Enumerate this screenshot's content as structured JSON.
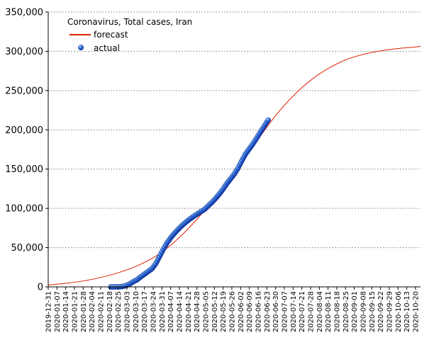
{
  "chart_data": {
    "type": "line",
    "title": "",
    "legend": {
      "title": "Coronavirus, Total cases, Iran",
      "placement": "top-left",
      "entries": [
        "forecast",
        "actual"
      ]
    },
    "xlabel": "",
    "ylabel": "",
    "ylim": [
      0,
      350000
    ],
    "xlim": [
      "2019-12-31",
      "2020-10-24"
    ],
    "grid": "horizontal dashed",
    "colors": {
      "forecast": "#e02000",
      "actual": "#1a55d8"
    },
    "x_ticks": [
      "2019-12-31",
      "2020-01-07",
      "2020-01-14",
      "2020-01-21",
      "2020-01-28",
      "2020-02-04",
      "2020-02-11",
      "2020-02-18",
      "2020-02-25",
      "2020-03-03",
      "2020-03-10",
      "2020-03-17",
      "2020-03-24",
      "2020-03-31",
      "2020-04-07",
      "2020-04-14",
      "2020-04-21",
      "2020-04-28",
      "2020-05-05",
      "2020-05-12",
      "2020-05-19",
      "2020-05-26",
      "2020-06-02",
      "2020-06-09",
      "2020-06-16",
      "2020-06-23",
      "2020-06-30",
      "2020-07-07",
      "2020-07-14",
      "2020-07-21",
      "2020-07-28",
      "2020-08-04",
      "2020-08-11",
      "2020-08-18",
      "2020-08-25",
      "2020-09-01",
      "2020-09-08",
      "2020-09-15",
      "2020-09-22",
      "2020-09-29",
      "2020-10-06",
      "2020-10-13",
      "2020-10-20"
    ],
    "y_ticks": [
      0,
      50000,
      100000,
      150000,
      200000,
      250000,
      300000,
      350000
    ],
    "y_tick_labels": [
      "0",
      "50,000",
      "100,000",
      "150,000",
      "200,000",
      "250,000",
      "300,000",
      "350,000"
    ],
    "series": [
      {
        "name": "forecast",
        "style": "line",
        "x": [
          "2019-12-31",
          "2020-01-14",
          "2020-01-28",
          "2020-02-11",
          "2020-02-25",
          "2020-03-10",
          "2020-03-24",
          "2020-04-07",
          "2020-04-21",
          "2020-05-05",
          "2020-05-19",
          "2020-06-02",
          "2020-06-16",
          "2020-06-30",
          "2020-07-14",
          "2020-07-28",
          "2020-08-11",
          "2020-08-25",
          "2020-09-08",
          "2020-09-22",
          "2020-10-06",
          "2020-10-20",
          "2020-10-24"
        ],
        "y": [
          2500,
          4500,
          7500,
          12000,
          18000,
          26000,
          37000,
          53000,
          74000,
          99000,
          127000,
          157000,
          188000,
          218000,
          243000,
          263000,
          278000,
          289000,
          296000,
          300500,
          303500,
          305500,
          306500
        ]
      },
      {
        "name": "actual",
        "style": "markers",
        "x": [
          "2020-02-19",
          "2020-02-22",
          "2020-02-25",
          "2020-02-28",
          "2020-03-02",
          "2020-03-05",
          "2020-03-08",
          "2020-03-11",
          "2020-03-14",
          "2020-03-17",
          "2020-03-20",
          "2020-03-23",
          "2020-03-26",
          "2020-03-29",
          "2020-04-01",
          "2020-04-04",
          "2020-04-07",
          "2020-04-10",
          "2020-04-13",
          "2020-04-16",
          "2020-04-19",
          "2020-04-22",
          "2020-04-25",
          "2020-04-28",
          "2020-05-01",
          "2020-05-04",
          "2020-05-07",
          "2020-05-10",
          "2020-05-13",
          "2020-05-16",
          "2020-05-19",
          "2020-05-22",
          "2020-05-25",
          "2020-05-28",
          "2020-05-31",
          "2020-06-03",
          "2020-06-06",
          "2020-06-09",
          "2020-06-12",
          "2020-06-15",
          "2020-06-18",
          "2020-06-21",
          "2020-06-24"
        ],
        "y": [
          2,
          28,
          95,
          388,
          1501,
          3513,
          6566,
          9000,
          12729,
          16169,
          19644,
          23049,
          29406,
          38309,
          47593,
          55743,
          62589,
          68192,
          73303,
          77995,
          82211,
          85996,
          89328,
          92584,
          95646,
          98647,
          103135,
          107603,
          112725,
          118392,
          124603,
          131652,
          137724,
          143849,
          151466,
          160696,
          169425,
          175927,
          182525,
          189876,
          197647,
          204952,
          212501
        ]
      }
    ]
  }
}
